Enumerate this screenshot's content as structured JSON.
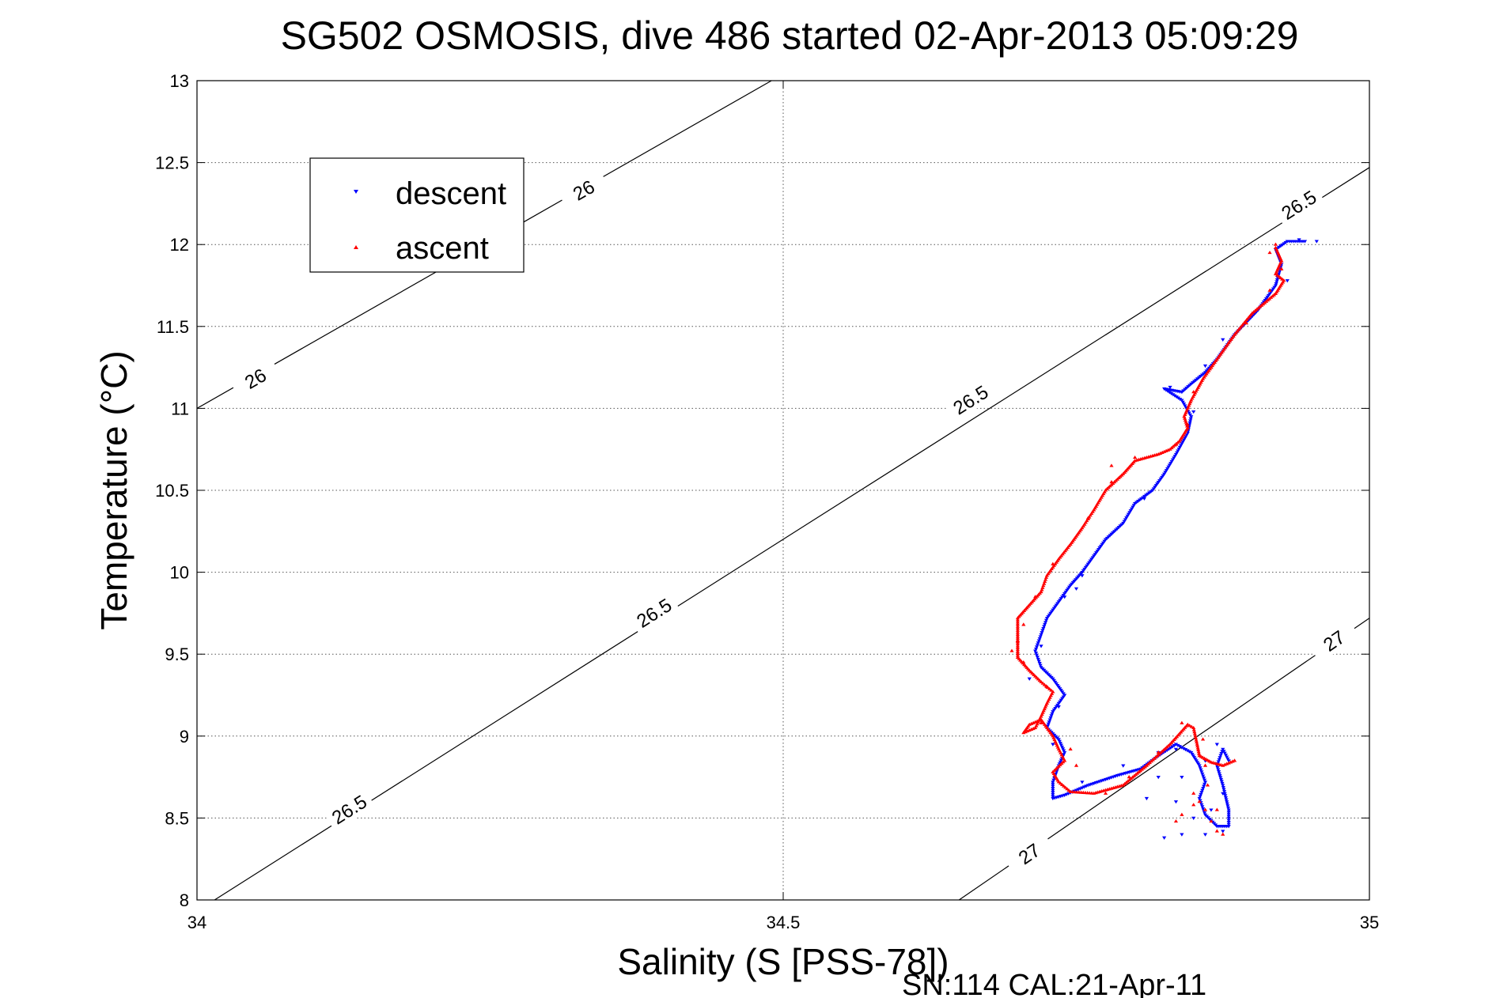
{
  "chart_data": {
    "type": "scatter",
    "title": "SG502 OSMOSIS, dive 486 started 02-Apr-2013 05:09:29",
    "xlabel": "Salinity (S [PSS-78])",
    "ylabel": "Temperature (°C)",
    "footer": "SN:114  CAL:21-Apr-11",
    "xlim": [
      34,
      35
    ],
    "ylim": [
      8,
      13
    ],
    "x_ticks": [
      34,
      34.5,
      35
    ],
    "x_tick_labels": [
      "34",
      "34.5",
      "35"
    ],
    "y_ticks": [
      8,
      8.5,
      9,
      9.5,
      10,
      10.5,
      11,
      11.5,
      12,
      12.5,
      13
    ],
    "y_tick_labels": [
      "8",
      "8.5",
      "9",
      "9.5",
      "10",
      "10.5",
      "11",
      "11.5",
      "12",
      "12.5",
      "13"
    ],
    "grid": true,
    "legend_position": "top-left",
    "contours": [
      {
        "label": "26",
        "points": [
          [
            34,
            11
          ],
          [
            34.49,
            13
          ]
        ],
        "label_positions": [
          [
            34.05,
            11.18
          ],
          [
            34.33,
            12.33
          ]
        ]
      },
      {
        "label": "26.5",
        "points": [
          [
            34.015,
            8
          ],
          [
            35,
            12.47
          ]
        ],
        "label_positions": [
          [
            34.13,
            8.55
          ],
          [
            34.39,
            9.75
          ],
          [
            34.66,
            11.05
          ],
          [
            34.94,
            12.24
          ]
        ]
      },
      {
        "label": "27",
        "points": [
          [
            34.65,
            8
          ],
          [
            35,
            9.72
          ]
        ],
        "label_positions": [
          [
            34.71,
            8.28
          ],
          [
            34.97,
            9.58
          ]
        ]
      }
    ],
    "series": [
      {
        "name": "descent",
        "color": "#0000ff",
        "marker": "triangle-down",
        "path": [
          [
            34.945,
            12.02
          ],
          [
            34.93,
            12.02
          ],
          [
            34.92,
            11.97
          ],
          [
            34.925,
            11.88
          ],
          [
            34.92,
            11.75
          ],
          [
            34.905,
            11.6
          ],
          [
            34.885,
            11.45
          ],
          [
            34.87,
            11.3
          ],
          [
            34.86,
            11.22
          ],
          [
            34.848,
            11.15
          ],
          [
            34.84,
            11.1
          ],
          [
            34.825,
            11.12
          ],
          [
            34.84,
            11.05
          ],
          [
            34.848,
            10.95
          ],
          [
            34.845,
            10.85
          ],
          [
            34.835,
            10.72
          ],
          [
            34.825,
            10.6
          ],
          [
            34.815,
            10.5
          ],
          [
            34.8,
            10.42
          ],
          [
            34.79,
            10.3
          ],
          [
            34.775,
            10.2
          ],
          [
            34.765,
            10.1
          ],
          [
            34.755,
            10.0
          ],
          [
            34.745,
            9.92
          ],
          [
            34.735,
            9.82
          ],
          [
            34.725,
            9.72
          ],
          [
            34.72,
            9.62
          ],
          [
            34.715,
            9.52
          ],
          [
            34.72,
            9.42
          ],
          [
            34.73,
            9.35
          ],
          [
            34.74,
            9.25
          ],
          [
            34.73,
            9.15
          ],
          [
            34.725,
            9.05
          ],
          [
            34.735,
            8.98
          ],
          [
            34.74,
            8.9
          ],
          [
            34.735,
            8.82
          ],
          [
            34.73,
            8.72
          ],
          [
            34.73,
            8.62
          ],
          [
            34.74,
            8.64
          ],
          [
            34.76,
            8.7
          ],
          [
            34.785,
            8.76
          ],
          [
            34.805,
            8.8
          ],
          [
            34.82,
            8.88
          ],
          [
            34.835,
            8.95
          ],
          [
            34.848,
            8.9
          ],
          [
            34.855,
            8.82
          ],
          [
            34.86,
            8.72
          ],
          [
            34.855,
            8.62
          ],
          [
            34.86,
            8.52
          ],
          [
            34.87,
            8.45
          ],
          [
            34.88,
            8.45
          ],
          [
            34.88,
            8.55
          ],
          [
            34.875,
            8.7
          ],
          [
            34.87,
            8.82
          ],
          [
            34.875,
            8.92
          ],
          [
            34.88,
            8.85
          ]
        ],
        "scatter": [
          [
            34.955,
            12.02
          ],
          [
            34.94,
            12.03
          ],
          [
            34.93,
            11.78
          ],
          [
            34.91,
            11.65
          ],
          [
            34.875,
            11.42
          ],
          [
            34.86,
            11.26
          ],
          [
            34.83,
            11.13
          ],
          [
            34.85,
            10.98
          ],
          [
            34.82,
            10.55
          ],
          [
            34.808,
            10.45
          ],
          [
            34.77,
            10.15
          ],
          [
            34.755,
            9.98
          ],
          [
            34.75,
            9.9
          ],
          [
            34.74,
            9.85
          ],
          [
            34.72,
            9.55
          ],
          [
            34.71,
            9.35
          ],
          [
            34.735,
            9.18
          ],
          [
            34.73,
            8.95
          ],
          [
            34.755,
            8.72
          ],
          [
            34.79,
            8.82
          ],
          [
            34.84,
            8.75
          ],
          [
            34.85,
            8.5
          ],
          [
            34.84,
            8.4
          ],
          [
            34.825,
            8.38
          ],
          [
            34.835,
            8.6
          ],
          [
            34.86,
            8.85
          ],
          [
            34.87,
            8.95
          ],
          [
            34.875,
            8.65
          ],
          [
            34.865,
            8.55
          ],
          [
            34.875,
            8.42
          ],
          [
            34.86,
            8.4
          ],
          [
            34.82,
            8.9
          ],
          [
            34.835,
            8.92
          ],
          [
            34.81,
            8.62
          ],
          [
            34.82,
            8.75
          ]
        ]
      },
      {
        "name": "ascent",
        "color": "#ff0000",
        "marker": "triangle-up",
        "path": [
          [
            34.92,
            11.98
          ],
          [
            34.925,
            11.9
          ],
          [
            34.92,
            11.82
          ],
          [
            34.927,
            11.78
          ],
          [
            34.92,
            11.7
          ],
          [
            34.9,
            11.58
          ],
          [
            34.885,
            11.45
          ],
          [
            34.87,
            11.3
          ],
          [
            34.858,
            11.18
          ],
          [
            34.848,
            11.05
          ],
          [
            34.842,
            10.95
          ],
          [
            34.845,
            10.88
          ],
          [
            34.838,
            10.8
          ],
          [
            34.83,
            10.75
          ],
          [
            34.82,
            10.72
          ],
          [
            34.8,
            10.68
          ],
          [
            34.79,
            10.6
          ],
          [
            34.775,
            10.5
          ],
          [
            34.765,
            10.38
          ],
          [
            34.755,
            10.27
          ],
          [
            34.745,
            10.17
          ],
          [
            34.735,
            10.08
          ],
          [
            34.725,
            9.98
          ],
          [
            34.72,
            9.88
          ],
          [
            34.71,
            9.8
          ],
          [
            34.7,
            9.72
          ],
          [
            34.7,
            9.62
          ],
          [
            34.7,
            9.55
          ],
          [
            34.7,
            9.48
          ],
          [
            34.71,
            9.4
          ],
          [
            34.72,
            9.33
          ],
          [
            34.73,
            9.27
          ],
          [
            34.725,
            9.2
          ],
          [
            34.72,
            9.12
          ],
          [
            34.715,
            9.05
          ],
          [
            34.705,
            9.02
          ],
          [
            34.71,
            9.07
          ],
          [
            34.72,
            9.1
          ],
          [
            34.73,
            9.0
          ],
          [
            34.735,
            8.92
          ],
          [
            34.74,
            8.85
          ],
          [
            34.73,
            8.78
          ],
          [
            34.735,
            8.72
          ],
          [
            34.745,
            8.66
          ],
          [
            34.765,
            8.65
          ],
          [
            34.79,
            8.7
          ],
          [
            34.81,
            8.82
          ],
          [
            34.83,
            8.95
          ],
          [
            34.845,
            9.07
          ],
          [
            34.85,
            9.05
          ],
          [
            34.853,
            8.95
          ],
          [
            34.855,
            8.88
          ],
          [
            34.865,
            8.84
          ],
          [
            34.875,
            8.82
          ],
          [
            34.885,
            8.85
          ]
        ],
        "scatter": [
          [
            34.92,
            12.0
          ],
          [
            34.915,
            11.95
          ],
          [
            34.925,
            11.85
          ],
          [
            34.915,
            11.72
          ],
          [
            34.895,
            11.52
          ],
          [
            34.865,
            11.25
          ],
          [
            34.85,
            11.1
          ],
          [
            34.845,
            10.9
          ],
          [
            34.835,
            10.78
          ],
          [
            34.78,
            10.55
          ],
          [
            34.76,
            10.33
          ],
          [
            34.73,
            10.05
          ],
          [
            34.715,
            9.85
          ],
          [
            34.705,
            9.68
          ],
          [
            34.7,
            9.58
          ],
          [
            34.695,
            9.52
          ],
          [
            34.705,
            9.45
          ],
          [
            34.725,
            9.3
          ],
          [
            34.72,
            9.08
          ],
          [
            34.745,
            8.92
          ],
          [
            34.75,
            8.82
          ],
          [
            34.775,
            8.65
          ],
          [
            34.795,
            8.75
          ],
          [
            34.82,
            8.9
          ],
          [
            34.84,
            9.08
          ],
          [
            34.858,
            8.98
          ],
          [
            34.86,
            8.82
          ],
          [
            34.85,
            8.58
          ],
          [
            34.86,
            8.55
          ],
          [
            34.87,
            8.55
          ],
          [
            34.865,
            8.48
          ],
          [
            34.87,
            8.42
          ],
          [
            34.84,
            8.52
          ],
          [
            34.835,
            8.48
          ],
          [
            34.85,
            8.65
          ],
          [
            34.862,
            8.7
          ],
          [
            34.855,
            8.6
          ],
          [
            34.875,
            8.4
          ],
          [
            34.78,
            10.65
          ],
          [
            34.8,
            10.7
          ]
        ]
      }
    ]
  }
}
